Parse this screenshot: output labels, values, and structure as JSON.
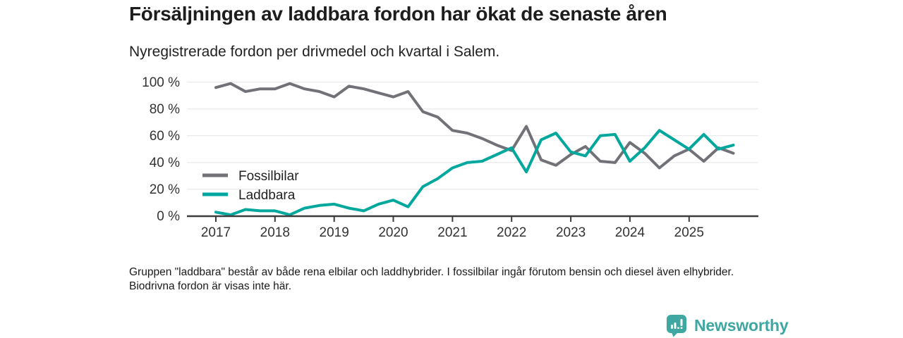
{
  "header": {
    "title": "Försäljningen av laddbara fordon har ökat de senaste åren",
    "subtitle": "Nyregistrerade fordon per drivmedel och kvartal i Salem."
  },
  "chart_data": {
    "type": "line",
    "title": "Försäljningen av laddbara fordon har ökat de senaste åren",
    "subtitle": "Nyregistrerade fordon per drivmedel och kvartal i Salem.",
    "unit": "%",
    "ylim": [
      0,
      100
    ],
    "grid": true,
    "legend_position": "inside-left",
    "ytick_labels": [
      "100 %",
      "80 %",
      "60 %",
      "40 %",
      "20 %",
      "0 %"
    ],
    "xtick_labels": [
      "2017",
      "2018",
      "2019",
      "2020",
      "2021",
      "2022",
      "2023",
      "2024",
      "2025"
    ],
    "categories": [
      "2017 Q1",
      "2017 Q2",
      "2017 Q3",
      "2017 Q4",
      "2018 Q1",
      "2018 Q2",
      "2018 Q3",
      "2018 Q4",
      "2019 Q1",
      "2019 Q2",
      "2019 Q3",
      "2019 Q4",
      "2020 Q1",
      "2020 Q2",
      "2020 Q3",
      "2020 Q4",
      "2021 Q1",
      "2021 Q2",
      "2021 Q3",
      "2021 Q4",
      "2022 Q1",
      "2022 Q2",
      "2022 Q3",
      "2022 Q4",
      "2023 Q1",
      "2023 Q2",
      "2023 Q3",
      "2023 Q4",
      "2024 Q1",
      "2024 Q2",
      "2024 Q3",
      "2024 Q4",
      "2025 Q1",
      "2025 Q2",
      "2025 Q3",
      "2025 Q4"
    ],
    "series": [
      {
        "name": "Fossilbilar",
        "color": "#717178",
        "values": [
          96,
          99,
          93,
          95,
          95,
          99,
          95,
          93,
          89,
          97,
          95,
          92,
          89,
          93,
          78,
          74,
          64,
          62,
          58,
          53,
          49,
          67,
          42,
          38,
          46,
          52,
          41,
          40,
          55,
          47,
          36,
          45,
          50,
          41,
          51,
          47
        ]
      },
      {
        "name": "Laddbara",
        "color": "#00a79c",
        "values": [
          3,
          1,
          5,
          4,
          4,
          1,
          6,
          8,
          9,
          6,
          4,
          9,
          12,
          7,
          22,
          28,
          36,
          40,
          41,
          46,
          51,
          33,
          57,
          62,
          48,
          45,
          60,
          61,
          41,
          51,
          64,
          57,
          50,
          61,
          50,
          53
        ]
      }
    ]
  },
  "footnote": {
    "text": "Gruppen \"laddbara\" består av både rena elbilar och laddhybrider. I fossilbilar ingår förutom bensin och diesel även elhybrider. Biodrivna fordon är visas inte här."
  },
  "branding": {
    "name": "Newsworthy",
    "icon": "bar-chart-speech-bubble-icon",
    "color": "#3fa7a1"
  }
}
